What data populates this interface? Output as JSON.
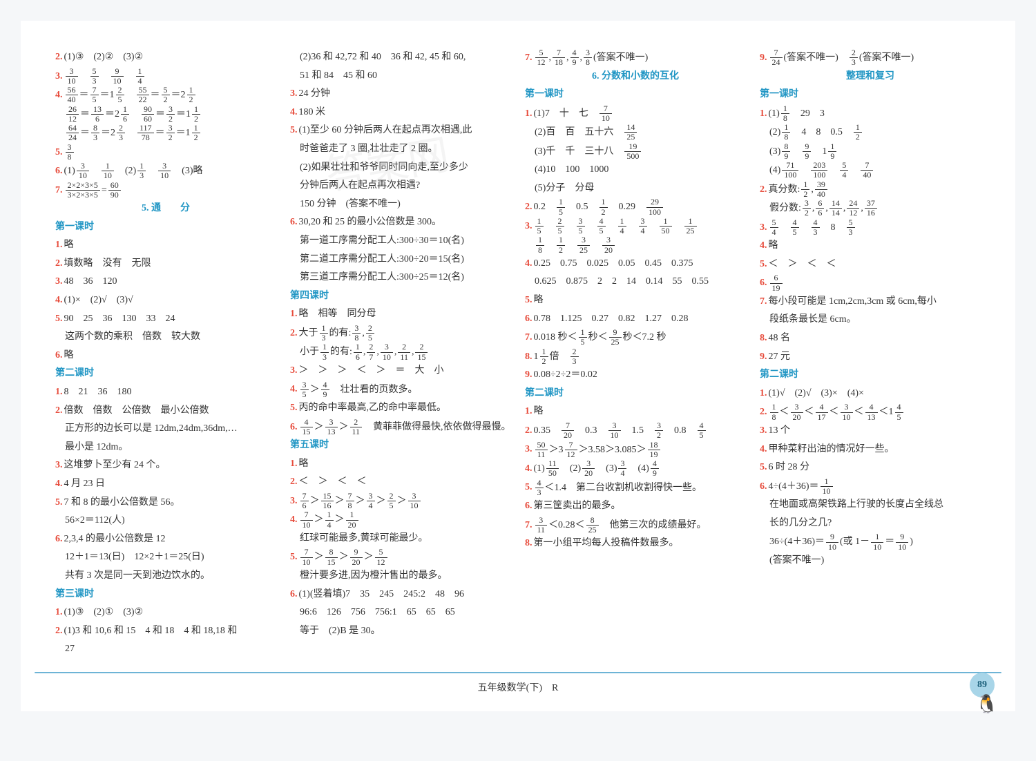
{
  "page": {
    "footer": "五年级数学(下)　R",
    "page_number": "89"
  },
  "col1": {
    "l1_num": "2.",
    "l1": "(1)③　(2)②　(3)②",
    "l2_num": "3.",
    "l2_f": [
      [
        "3",
        "10"
      ],
      [
        "5",
        "3"
      ],
      [
        "9",
        "10"
      ],
      [
        "1",
        "4"
      ]
    ],
    "l3_num": "4.",
    "l3a_chain": [
      [
        "56",
        "40"
      ],
      [
        "7",
        "5"
      ]
    ],
    "l3a_mix": [
      "1",
      "2",
      "5"
    ],
    "l3b_chain": [
      [
        "55",
        "22"
      ],
      [
        "5",
        "2"
      ]
    ],
    "l3b_mix": [
      "2",
      "1",
      "2"
    ],
    "l4a_chain": [
      [
        "26",
        "12"
      ],
      [
        "13",
        "6"
      ]
    ],
    "l4a_mix": [
      "2",
      "1",
      "6"
    ],
    "l4b_chain": [
      [
        "90",
        "60"
      ],
      [
        "3",
        "2"
      ]
    ],
    "l4b_mix": [
      "1",
      "1",
      "2"
    ],
    "l5a_chain": [
      [
        "64",
        "24"
      ],
      [
        "8",
        "3"
      ]
    ],
    "l5a_mix": [
      "2",
      "2",
      "3"
    ],
    "l5b_chain": [
      [
        "117",
        "78"
      ],
      [
        "3",
        "2"
      ]
    ],
    "l5b_mix": [
      "1",
      "1",
      "2"
    ],
    "l6_num": "5.",
    "l6_f": [
      "3",
      "8"
    ],
    "l7_num": "6.",
    "l7a": "(1)",
    "l7a_f": [
      [
        "3",
        "10"
      ],
      [
        "1",
        "10"
      ]
    ],
    "l7b": "(2)",
    "l7b_f": [
      [
        "1",
        "3"
      ],
      [
        "3",
        "10"
      ]
    ],
    "l7c": "(3)略",
    "l8_num": "7.",
    "l8_f": [
      "2×2×3×5",
      "3×2×3×5"
    ],
    "l8_eq": "=",
    "l8_f2": [
      "60",
      "90"
    ],
    "sec5": "5. 通　　分",
    "s1": "第一课时",
    "s1_1_num": "1.",
    "s1_1": "略",
    "s1_2_num": "2.",
    "s1_2": "填数略　没有　无限",
    "s1_3_num": "3.",
    "s1_3": "48　36　120",
    "s1_4_num": "4.",
    "s1_4": "(1)×　(2)√　(3)√",
    "s1_5_num": "5.",
    "s1_5": "90　25　36　130　33　24",
    "s1_5b": "这两个数的乘积　倍数　较大数",
    "s1_6_num": "6.",
    "s1_6": "略",
    "s2": "第二课时",
    "s2_1_num": "1.",
    "s2_1": "8　21　36　180",
    "s2_2_num": "2.",
    "s2_2": "倍数　倍数　公倍数　最小公倍数",
    "s2_2b": "正方形的边长可以是 12dm,24dm,36dm,…",
    "s2_2c": "最小是 12dm。",
    "s2_3_num": "3.",
    "s2_3": "这堆萝卜至少有 24 个。",
    "s2_4_num": "4.",
    "s2_4": "4 月 23 日",
    "s2_5_num": "5.",
    "s2_5": "7 和 8 的最小公倍数是 56。",
    "s2_5b": "56×2＝112(人)",
    "s2_6_num": "6.",
    "s2_6": "2,3,4 的最小公倍数是 12",
    "s2_6b": "12＋1＝13(日)　12×2＋1＝25(日)",
    "s2_6c": "共有 3 次是同一天到池边饮水的。",
    "s3": "第三课时",
    "s3_1_num": "1.",
    "s3_1": "(1)③　(2)①　(3)②",
    "s3_2_num": "2.",
    "s3_2": "(1)3 和 10,6 和 15　4 和 18　4 和 18,18 和",
    "s3_2b": "27"
  },
  "col2": {
    "l1": "(2)36 和 42,72 和 40　36 和 42, 45 和 60,",
    "l2": "51 和 84　45 和 60",
    "l3_num": "3.",
    "l3": "24 分钟",
    "l4_num": "4.",
    "l4": "180 米",
    "l5_num": "5.",
    "l5": "(1)至少 60 分钟后两人在起点再次相遇,此",
    "l5b": "时爸爸走了 3 圈,壮壮走了 2 圈。",
    "l5c": "(2)如果壮壮和爷爷同时同向走,至少多少",
    "l5d": "分钟后两人在起点再次相遇?",
    "l5e": "150 分钟　(答案不唯一)",
    "l6_num": "6.",
    "l6": "30,20 和 25 的最小公倍数是 300。",
    "l6b": "第一道工序需分配工人:300÷30＝10(名)",
    "l6c": "第二道工序需分配工人:300÷20＝15(名)",
    "l6d": "第三道工序需分配工人:300÷25＝12(名)",
    "s4": "第四课时",
    "s4_1_num": "1.",
    "s4_1": "略　相等　同分母",
    "s4_2_num": "2.",
    "s4_2a": "大于",
    "s4_2a_f": [
      "1",
      "3"
    ],
    "s4_2a2": "的有:",
    "s4_2a_fs": [
      [
        "3",
        "8"
      ],
      [
        "2",
        "5"
      ]
    ],
    "s4_2b": "小于",
    "s4_2b_f": [
      "1",
      "3"
    ],
    "s4_2b2": "的有:",
    "s4_2b_fs": [
      [
        "1",
        "6"
      ],
      [
        "2",
        "7"
      ],
      [
        "3",
        "10"
      ],
      [
        "2",
        "11"
      ],
      [
        "2",
        "15"
      ]
    ],
    "s4_3_num": "3.",
    "s4_3": "＞　＞　＞　＜　＞　＝　大　小",
    "s4_4_num": "4.",
    "s4_4_f1": [
      "3",
      "5"
    ],
    "s4_4_gt": "＞",
    "s4_4_f2": [
      "4",
      "9"
    ],
    "s4_4_t": "壮壮看的页数多。",
    "s4_5_num": "5.",
    "s4_5": "丙的命中率最高,乙的命中率最低。",
    "s4_6_num": "6.",
    "s4_6_f1": [
      "4",
      "15"
    ],
    "s4_6_g1": "＞",
    "s4_6_f2": [
      "3",
      "13"
    ],
    "s4_6_g2": "＞",
    "s4_6_f3": [
      "2",
      "11"
    ],
    "s4_6_t": "黄菲菲做得最快,依依做得最慢。",
    "s5": "第五课时",
    "s5_1_num": "1.",
    "s5_1": "略",
    "s5_2_num": "2.",
    "s5_2": "＜　＞　＜　＜",
    "s5_3_num": "3.",
    "s5_3_fs": [
      [
        "7",
        "6"
      ],
      [
        "15",
        "16"
      ],
      [
        "7",
        "8"
      ],
      [
        "3",
        "4"
      ],
      [
        "2",
        "5"
      ],
      [
        "3",
        "10"
      ]
    ],
    "s5_4_num": "4.",
    "s5_4_fs": [
      [
        "7",
        "10"
      ],
      [
        "1",
        "4"
      ],
      [
        "1",
        "20"
      ]
    ],
    "s5_4b": "红球可能最多,黄球可能最少。",
    "s5_5_num": "5.",
    "s5_5_fs": [
      [
        "7",
        "10"
      ],
      [
        "8",
        "15"
      ],
      [
        "9",
        "20"
      ],
      [
        "5",
        "12"
      ]
    ],
    "s5_5b": "橙汁要多进,因为橙汁售出的最多。",
    "s5_6_num": "6.",
    "s5_6": "(1)(竖着填)7　35　245　245:2　48　96",
    "s5_6b": "96:6　126　756　756:1　65　65　65",
    "s5_6c": "等于　(2)B 是 30。"
  },
  "col3": {
    "l1_num": "7.",
    "l1_fs": [
      [
        "5",
        "12"
      ],
      [
        "7",
        "18"
      ],
      [
        "4",
        "9"
      ],
      [
        "3",
        "8"
      ]
    ],
    "l1_t": "(答案不唯一)",
    "sec6": "6. 分数和小数的互化",
    "s1": "第一课时",
    "s1_1_num": "1.",
    "s1_1": "(1)7　十　七　",
    "s1_1_f": [
      "7",
      "10"
    ],
    "s1_1b": "(2)百　百　五十六　",
    "s1_1b_f": [
      "14",
      "25"
    ],
    "s1_1c": "(3)千　千　三十八　",
    "s1_1c_f": [
      "19",
      "500"
    ],
    "s1_1d": "(4)10　100　1000",
    "s1_1e": "(5)分子　分母",
    "s1_2_num": "2.",
    "s1_2a": "0.2　",
    "s1_2a_f": [
      "1",
      "5"
    ],
    "s1_2b": "　0.5　",
    "s1_2b_f": [
      "1",
      "2"
    ],
    "s1_2c": "　0.29　",
    "s1_2c_f": [
      "29",
      "100"
    ],
    "s1_3_num": "3.",
    "s1_3_fs": [
      [
        "1",
        "5"
      ],
      [
        "2",
        "5"
      ],
      [
        "3",
        "5"
      ],
      [
        "4",
        "5"
      ],
      [
        "1",
        "4"
      ],
      [
        "3",
        "4"
      ],
      [
        "1",
        "50"
      ],
      [
        "1",
        "25"
      ]
    ],
    "s1_3b_fs": [
      [
        "1",
        "8"
      ],
      [
        "1",
        "2"
      ],
      [
        "3",
        "25"
      ],
      [
        "3",
        "20"
      ]
    ],
    "s1_4_num": "4.",
    "s1_4": "0.25　0.75　0.025　0.05　0.45　0.375",
    "s1_4b": "0.625　0.875　2　2　14　0.14　55　0.55",
    "s1_5_num": "5.",
    "s1_5": "略",
    "s1_6_num": "6.",
    "s1_6": "0.78　1.125　0.27　0.82　1.27　0.28",
    "s1_7_num": "7.",
    "s1_7a": "0.018 秒＜",
    "s1_7_f1": [
      "1",
      "5"
    ],
    "s1_7b": "秒＜",
    "s1_7_f2": [
      "9",
      "25"
    ],
    "s1_7c": "秒＜7.2 秒",
    "s1_8_num": "8.",
    "s1_8a": "1",
    "s1_8_f1": [
      "1",
      "2"
    ],
    "s1_8b": "倍　",
    "s1_8_f2": [
      "2",
      "3"
    ],
    "s1_9_num": "9.",
    "s1_9": "0.08÷2÷2＝0.02",
    "s2": "第二课时",
    "s2_1_num": "1.",
    "s2_1": "略",
    "s2_2_num": "2.",
    "s2_2a": "0.35　",
    "s2_2a_f": [
      "7",
      "20"
    ],
    "s2_2b": "　0.3　",
    "s2_2b_f": [
      "3",
      "10"
    ],
    "s2_2c": "　1.5　",
    "s2_2c_f": [
      "3",
      "2"
    ],
    "s2_2d": "　0.8　",
    "s2_2d_f": [
      "4",
      "5"
    ],
    "s2_3_num": "3.",
    "s2_3_f1": [
      "50",
      "11"
    ],
    "s2_3a": "＞3",
    "s2_3_f2": [
      "7",
      "12"
    ],
    "s2_3b": "＞3.58＞3.085＞",
    "s2_3_f3": [
      "18",
      "19"
    ],
    "s2_4_num": "4.",
    "s2_4a": "(1)",
    "s2_4_f1": [
      "11",
      "50"
    ],
    "s2_4b": "　(2)",
    "s2_4_f2": [
      "3",
      "20"
    ],
    "s2_4c": "　(3)",
    "s2_4_f3": [
      "3",
      "4"
    ],
    "s2_4d": "　(4)",
    "s2_4_f4": [
      "4",
      "9"
    ],
    "s2_5_num": "5.",
    "s2_5_f": [
      "4",
      "3"
    ],
    "s2_5": "＜1.4　第二台收割机收割得快一些。",
    "s2_6_num": "6.",
    "s2_6": "第三筐卖出的最多。",
    "s2_7_num": "7.",
    "s2_7_f1": [
      "3",
      "11"
    ],
    "s2_7a": "＜0.28＜",
    "s2_7_f2": [
      "8",
      "25"
    ],
    "s2_7b": "　他第三次的成绩最好。",
    "s2_8_num": "8.",
    "s2_8": "第一小组平均每人投稿件数最多。"
  },
  "col4": {
    "l1_num": "9.",
    "l1_f1": [
      "7",
      "24"
    ],
    "l1a": "(答案不唯一)　",
    "l1_f2": [
      "2",
      "3"
    ],
    "l1b": "(答案不唯一)",
    "sec7": "整理和复习",
    "s1": "第一课时",
    "s1_1_num": "1.",
    "s1_1a": "(1)",
    "s1_1_f1": [
      "1",
      "8"
    ],
    "s1_1b": "　29　3",
    "s1_1c": "(2)",
    "s1_1_f2": [
      "1",
      "8"
    ],
    "s1_1d": "　4　8　0.5　",
    "s1_1_f3": [
      "1",
      "2"
    ],
    "s1_1e": "(3)",
    "s1_1_f4": [
      "8",
      "9"
    ],
    "s1_1_f5": [
      "9",
      "9"
    ],
    "s1_1f": "　1",
    "s1_1_f6": [
      "1",
      "9"
    ],
    "s1_1g": "(4)",
    "s1_1_f7": [
      "71",
      "100"
    ],
    "s1_1_f8": [
      "203",
      "100"
    ],
    "s1_1_f9": [
      "5",
      "4"
    ],
    "s1_1_f10": [
      "7",
      "40"
    ],
    "s1_2_num": "2.",
    "s1_2a": "真分数:",
    "s1_2_fs1": [
      [
        "1",
        "2"
      ],
      [
        "39",
        "40"
      ]
    ],
    "s1_2b": "假分数:",
    "s1_2_fs2": [
      [
        "3",
        "2"
      ],
      [
        "6",
        "6"
      ],
      [
        "14",
        "14"
      ],
      [
        "24",
        "12"
      ],
      [
        "37",
        "16"
      ]
    ],
    "s1_3_num": "3.",
    "s1_3_fs": [
      [
        "5",
        "4"
      ],
      [
        "4",
        "5"
      ],
      [
        "4",
        "3"
      ]
    ],
    "s1_3a": "　8　",
    "s1_3_f": [
      "5",
      "3"
    ],
    "s1_4_num": "4.",
    "s1_4": "略",
    "s1_5_num": "5.",
    "s1_5": "＜　＞　＜　＜",
    "s1_6_num": "6.",
    "s1_6_f": [
      "6",
      "19"
    ],
    "s1_7_num": "7.",
    "s1_7": "每小段可能是 1cm,2cm,3cm 或 6cm,每小",
    "s1_7b": "段纸条最长是 6cm。",
    "s1_8_num": "8.",
    "s1_8": "48 名",
    "s1_9_num": "9.",
    "s1_9": "27 元",
    "s2": "第二课时",
    "s2_1_num": "1.",
    "s2_1": "(1)√　(2)√　(3)×　(4)×",
    "s2_2_num": "2.",
    "s2_2_f1": [
      "1",
      "8"
    ],
    "s2_2a": "＜",
    "s2_2_f2": [
      "3",
      "20"
    ],
    "s2_2b": "＜",
    "s2_2_f3": [
      "4",
      "17"
    ],
    "s2_2c": "＜",
    "s2_2_f4": [
      "3",
      "10"
    ],
    "s2_2d": "＜",
    "s2_2_f5": [
      "4",
      "13"
    ],
    "s2_2e": "＜1",
    "s2_2_f6": [
      "4",
      "5"
    ],
    "s2_3_num": "3.",
    "s2_3": "13 个",
    "s2_4_num": "4.",
    "s2_4": "甲种菜籽出油的情况好一些。",
    "s2_5_num": "5.",
    "s2_5": "6 时 28 分",
    "s2_6_num": "6.",
    "s2_6a": "4÷(4＋36)＝",
    "s2_6_f1": [
      "1",
      "10"
    ],
    "s2_6b": "在地面或高架铁路上行驶的长度占全线总",
    "s2_6c": "长的几分之几?",
    "s2_6d": "36÷(4＋36)＝",
    "s2_6_f2": [
      "9",
      "10"
    ],
    "s2_6e": "(或 1－",
    "s2_6_f3": [
      "1",
      "10"
    ],
    "s2_6f": "＝",
    "s2_6_f4": [
      "9",
      "10"
    ],
    "s2_6g": ")",
    "s2_6h": "(答案不唯一)"
  }
}
